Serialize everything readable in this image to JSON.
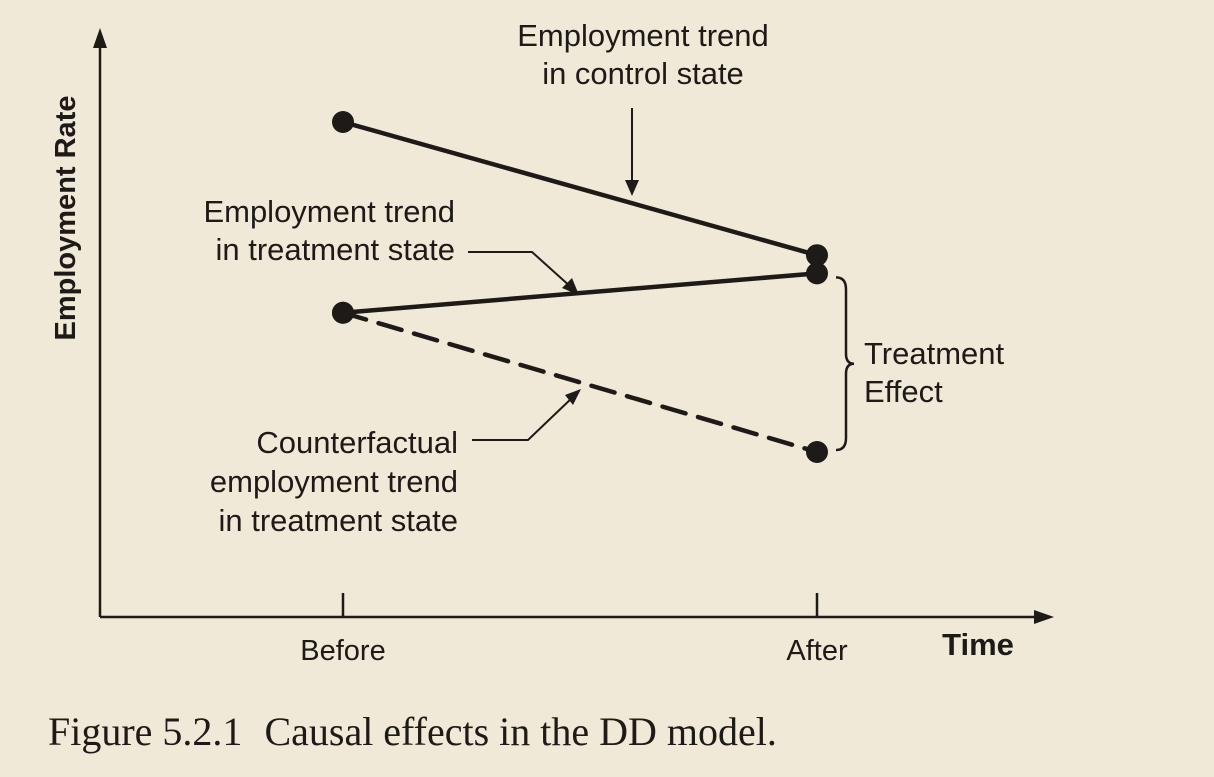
{
  "chart_data": {
    "type": "line",
    "xlabel": "Time",
    "ylabel": "Employment Rate",
    "categories": [
      "Before",
      "After"
    ],
    "series": [
      {
        "name": "Employment trend in control state",
        "values": [
          0.88,
          0.44
        ],
        "style": "solid"
      },
      {
        "name": "Employment trend in treatment state",
        "values": [
          0.25,
          0.38
        ],
        "style": "solid"
      },
      {
        "name": "Counterfactual employment trend in treatment state",
        "values": [
          0.25,
          -0.21
        ],
        "style": "dashed"
      }
    ],
    "annotations": [
      {
        "lines": [
          "Employment trend",
          "in control state"
        ]
      },
      {
        "lines": [
          "Employment trend",
          "in treatment state"
        ]
      },
      {
        "lines": [
          "Counterfactual",
          "employment trend",
          "in treatment state"
        ]
      },
      {
        "lines": [
          "Treatment",
          "Effect"
        ]
      }
    ],
    "grid": false,
    "legend": "none"
  },
  "caption": {
    "number": "Figure 5.2.1",
    "text": "Causal effects in the DD model."
  },
  "colors": {
    "ink": "#1e1a17",
    "paper": "#f1e9d7"
  }
}
